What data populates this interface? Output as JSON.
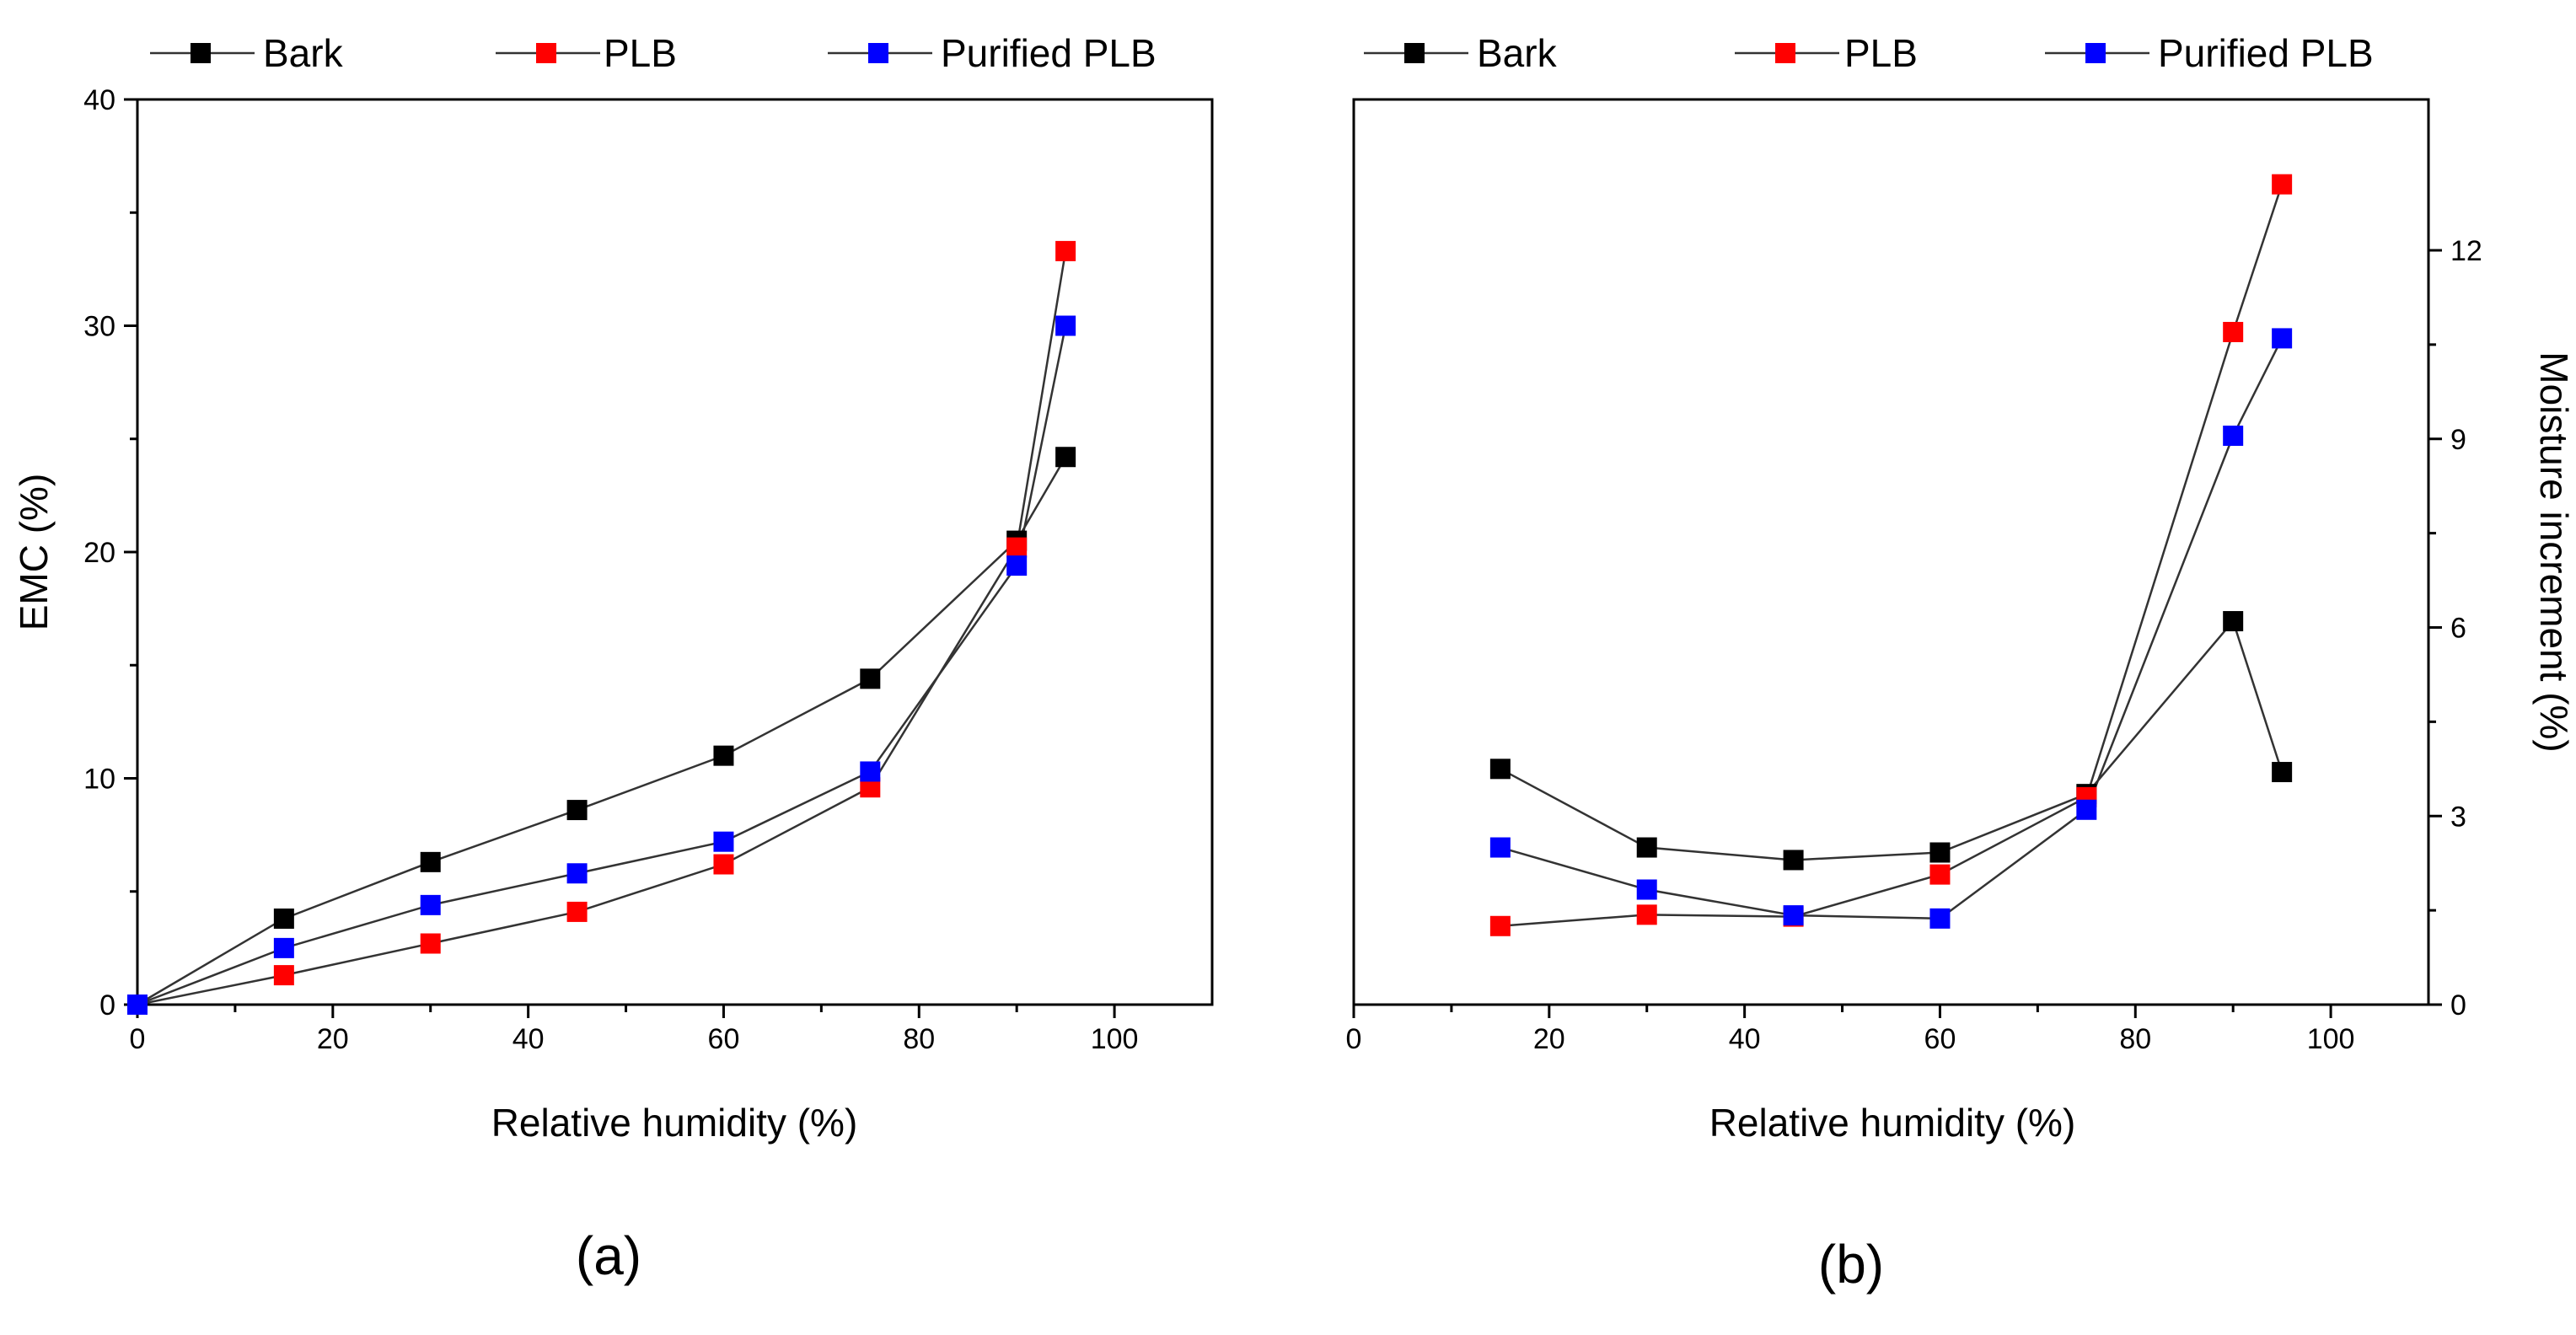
{
  "colors": {
    "bark": "#000000",
    "plb": "#ff0000",
    "purified": "#0000ff",
    "axis": "#000000"
  },
  "chart_data": [
    {
      "panel": "a",
      "panel_label": "(a)",
      "type": "line",
      "xlabel": "Relative humidity (%)",
      "ylabel": "EMC (%)",
      "xlim": [
        0,
        110
      ],
      "ylim": [
        0,
        40
      ],
      "xticks": [
        0,
        20,
        40,
        60,
        80,
        100
      ],
      "yticks": [
        0,
        10,
        20,
        30,
        40
      ],
      "y_axis_side": "left",
      "legend_placement": "top",
      "series": [
        {
          "name": "Bark",
          "color": "#000000",
          "x": [
            0,
            15,
            30,
            45,
            60,
            75,
            90,
            95
          ],
          "y": [
            0,
            3.8,
            6.3,
            8.6,
            11.0,
            14.4,
            20.5,
            24.2
          ]
        },
        {
          "name": "PLB",
          "color": "#ff0000",
          "x": [
            0,
            15,
            30,
            45,
            60,
            75,
            90,
            95
          ],
          "y": [
            0,
            1.3,
            2.7,
            4.1,
            6.2,
            9.6,
            20.2,
            33.3
          ]
        },
        {
          "name": "Purified PLB",
          "color": "#0000ff",
          "x": [
            0,
            15,
            30,
            45,
            60,
            75,
            90,
            95
          ],
          "y": [
            0,
            2.5,
            4.4,
            5.8,
            7.2,
            10.3,
            19.4,
            30.0
          ]
        }
      ]
    },
    {
      "panel": "b",
      "panel_label": "(b)",
      "type": "line",
      "xlabel": "Relative humidity (%)",
      "ylabel": "Moisture increment (%)",
      "xlim": [
        0,
        110
      ],
      "ylim": [
        0,
        14.4
      ],
      "xticks": [
        0,
        20,
        40,
        60,
        80,
        100
      ],
      "yticks": [
        0,
        3,
        6,
        9,
        12
      ],
      "y_axis_side": "right",
      "legend_placement": "top",
      "series": [
        {
          "name": "Bark",
          "color": "#000000",
          "x": [
            15,
            30,
            45,
            60,
            75,
            90,
            95
          ],
          "y": [
            3.75,
            2.5,
            2.3,
            2.42,
            3.35,
            6.1,
            3.7
          ]
        },
        {
          "name": "PLB",
          "color": "#ff0000",
          "x": [
            15,
            30,
            45,
            60,
            75,
            90,
            95
          ],
          "y": [
            1.25,
            1.43,
            1.4,
            2.07,
            3.3,
            10.7,
            13.05
          ]
        },
        {
          "name": "Purified PLB",
          "color": "#0000ff",
          "x": [
            15,
            30,
            45,
            60,
            75,
            90,
            95
          ],
          "y": [
            2.5,
            1.83,
            1.42,
            1.37,
            3.1,
            9.05,
            10.6
          ]
        }
      ]
    }
  ]
}
